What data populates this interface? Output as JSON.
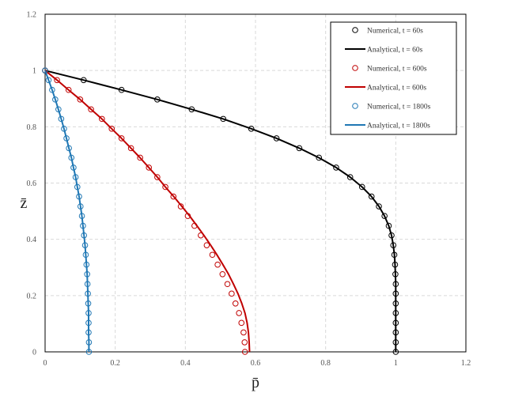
{
  "chart_data": {
    "type": "scatter",
    "title": "",
    "xlabel": "p̄",
    "ylabel": "z̄",
    "xlim": [
      0,
      1.2
    ],
    "ylim": [
      0,
      1.2
    ],
    "xticks": [
      "0",
      "0.2",
      "0.4",
      "0.6",
      "0.8",
      "1",
      "1.2"
    ],
    "yticks": [
      "0",
      "0.2",
      "0.4",
      "0.6",
      "0.8",
      "1",
      "1.2"
    ],
    "grid": true,
    "legend_position": "top-right",
    "legend": [
      "Numerical, t = 60s",
      "Analytical, t = 60s",
      "Numerical, t = 600s",
      "Analytical, t = 600s",
      "Numerical, t = 1800s",
      "Analytical, t = 1800s"
    ],
    "series": [
      {
        "name": "Numerical, t = 60s",
        "kind": "markers",
        "color": "#000000",
        "points": [
          [
            0,
            1.0
          ],
          [
            0.11,
            0.966
          ],
          [
            0.218,
            0.931
          ],
          [
            0.32,
            0.897
          ],
          [
            0.418,
            0.862
          ],
          [
            0.508,
            0.828
          ],
          [
            0.588,
            0.793
          ],
          [
            0.66,
            0.759
          ],
          [
            0.725,
            0.724
          ],
          [
            0.781,
            0.69
          ],
          [
            0.83,
            0.655
          ],
          [
            0.87,
            0.621
          ],
          [
            0.904,
            0.586
          ],
          [
            0.931,
            0.552
          ],
          [
            0.952,
            0.517
          ],
          [
            0.968,
            0.483
          ],
          [
            0.98,
            0.448
          ],
          [
            0.988,
            0.414
          ],
          [
            0.993,
            0.379
          ],
          [
            0.996,
            0.345
          ],
          [
            0.998,
            0.31
          ],
          [
            0.999,
            0.276
          ],
          [
            1.0,
            0.241
          ],
          [
            1.0,
            0.207
          ],
          [
            1.0,
            0.172
          ],
          [
            1.0,
            0.138
          ],
          [
            1.0,
            0.103
          ],
          [
            1.0,
            0.069
          ],
          [
            1.0,
            0.034
          ],
          [
            1.0,
            0.0
          ]
        ]
      },
      {
        "name": "Analytical, t = 60s",
        "kind": "line",
        "color": "#000000",
        "points": [
          [
            0,
            1.0
          ],
          [
            0.11,
            0.966
          ],
          [
            0.218,
            0.931
          ],
          [
            0.32,
            0.897
          ],
          [
            0.418,
            0.862
          ],
          [
            0.508,
            0.828
          ],
          [
            0.588,
            0.793
          ],
          [
            0.66,
            0.759
          ],
          [
            0.725,
            0.724
          ],
          [
            0.781,
            0.69
          ],
          [
            0.83,
            0.655
          ],
          [
            0.87,
            0.621
          ],
          [
            0.904,
            0.586
          ],
          [
            0.931,
            0.552
          ],
          [
            0.952,
            0.517
          ],
          [
            0.968,
            0.483
          ],
          [
            0.98,
            0.448
          ],
          [
            0.988,
            0.414
          ],
          [
            0.993,
            0.379
          ],
          [
            0.996,
            0.345
          ],
          [
            0.998,
            0.31
          ],
          [
            0.999,
            0.276
          ],
          [
            1.0,
            0.241
          ],
          [
            1.0,
            0.207
          ],
          [
            1.0,
            0.172
          ],
          [
            1.0,
            0.138
          ],
          [
            1.0,
            0.103
          ],
          [
            1.0,
            0.069
          ],
          [
            1.0,
            0.034
          ],
          [
            1.0,
            0.0
          ]
        ]
      },
      {
        "name": "Numerical, t = 600s",
        "kind": "markers",
        "color": "#c00000",
        "points": [
          [
            0,
            1.0
          ],
          [
            0.034,
            0.966
          ],
          [
            0.067,
            0.931
          ],
          [
            0.1,
            0.897
          ],
          [
            0.131,
            0.862
          ],
          [
            0.162,
            0.828
          ],
          [
            0.19,
            0.793
          ],
          [
            0.218,
            0.759
          ],
          [
            0.245,
            0.724
          ],
          [
            0.271,
            0.69
          ],
          [
            0.296,
            0.655
          ],
          [
            0.32,
            0.621
          ],
          [
            0.343,
            0.586
          ],
          [
            0.366,
            0.552
          ],
          [
            0.387,
            0.517
          ],
          [
            0.407,
            0.483
          ],
          [
            0.426,
            0.448
          ],
          [
            0.444,
            0.414
          ],
          [
            0.461,
            0.379
          ],
          [
            0.477,
            0.345
          ],
          [
            0.492,
            0.31
          ],
          [
            0.506,
            0.276
          ],
          [
            0.52,
            0.241
          ],
          [
            0.532,
            0.207
          ],
          [
            0.543,
            0.172
          ],
          [
            0.553,
            0.138
          ],
          [
            0.56,
            0.103
          ],
          [
            0.566,
            0.069
          ],
          [
            0.569,
            0.034
          ],
          [
            0.57,
            0.0
          ]
        ]
      },
      {
        "name": "Analytical, t = 600s",
        "kind": "line",
        "color": "#c00000",
        "points": [
          [
            0,
            1.0
          ],
          [
            0.034,
            0.966
          ],
          [
            0.067,
            0.931
          ],
          [
            0.1,
            0.897
          ],
          [
            0.131,
            0.862
          ],
          [
            0.162,
            0.828
          ],
          [
            0.19,
            0.793
          ],
          [
            0.218,
            0.759
          ],
          [
            0.245,
            0.724
          ],
          [
            0.271,
            0.69
          ],
          [
            0.296,
            0.655
          ],
          [
            0.32,
            0.621
          ],
          [
            0.343,
            0.586
          ],
          [
            0.367,
            0.552
          ],
          [
            0.39,
            0.517
          ],
          [
            0.412,
            0.483
          ],
          [
            0.433,
            0.448
          ],
          [
            0.453,
            0.414
          ],
          [
            0.472,
            0.379
          ],
          [
            0.49,
            0.345
          ],
          [
            0.507,
            0.31
          ],
          [
            0.523,
            0.276
          ],
          [
            0.537,
            0.241
          ],
          [
            0.55,
            0.207
          ],
          [
            0.561,
            0.172
          ],
          [
            0.57,
            0.138
          ],
          [
            0.576,
            0.103
          ],
          [
            0.58,
            0.069
          ],
          [
            0.582,
            0.034
          ],
          [
            0.583,
            0.0
          ]
        ]
      },
      {
        "name": "Numerical, t = 1800s",
        "kind": "markers",
        "color": "#1f77b4",
        "points": [
          [
            0,
            1.0
          ],
          [
            0.01,
            0.966
          ],
          [
            0.02,
            0.931
          ],
          [
            0.029,
            0.897
          ],
          [
            0.038,
            0.862
          ],
          [
            0.046,
            0.828
          ],
          [
            0.054,
            0.793
          ],
          [
            0.061,
            0.759
          ],
          [
            0.068,
            0.724
          ],
          [
            0.075,
            0.69
          ],
          [
            0.081,
            0.655
          ],
          [
            0.087,
            0.621
          ],
          [
            0.092,
            0.586
          ],
          [
            0.097,
            0.552
          ],
          [
            0.101,
            0.517
          ],
          [
            0.105,
            0.483
          ],
          [
            0.108,
            0.448
          ],
          [
            0.111,
            0.414
          ],
          [
            0.114,
            0.379
          ],
          [
            0.116,
            0.345
          ],
          [
            0.118,
            0.31
          ],
          [
            0.12,
            0.276
          ],
          [
            0.121,
            0.241
          ],
          [
            0.122,
            0.207
          ],
          [
            0.123,
            0.172
          ],
          [
            0.124,
            0.138
          ],
          [
            0.124,
            0.103
          ],
          [
            0.124,
            0.069
          ],
          [
            0.125,
            0.034
          ],
          [
            0.125,
            0.0
          ]
        ]
      },
      {
        "name": "Analytical, t = 1800s",
        "kind": "line",
        "color": "#1f77b4",
        "points": [
          [
            0,
            1.0
          ],
          [
            0.01,
            0.966
          ],
          [
            0.02,
            0.931
          ],
          [
            0.029,
            0.897
          ],
          [
            0.038,
            0.862
          ],
          [
            0.046,
            0.828
          ],
          [
            0.054,
            0.793
          ],
          [
            0.061,
            0.759
          ],
          [
            0.068,
            0.724
          ],
          [
            0.075,
            0.69
          ],
          [
            0.081,
            0.655
          ],
          [
            0.087,
            0.621
          ],
          [
            0.092,
            0.586
          ],
          [
            0.097,
            0.552
          ],
          [
            0.101,
            0.517
          ],
          [
            0.105,
            0.483
          ],
          [
            0.108,
            0.448
          ],
          [
            0.111,
            0.414
          ],
          [
            0.114,
            0.379
          ],
          [
            0.116,
            0.345
          ],
          [
            0.118,
            0.31
          ],
          [
            0.12,
            0.276
          ],
          [
            0.121,
            0.241
          ],
          [
            0.122,
            0.207
          ],
          [
            0.123,
            0.172
          ],
          [
            0.124,
            0.138
          ],
          [
            0.124,
            0.103
          ],
          [
            0.124,
            0.069
          ],
          [
            0.125,
            0.034
          ],
          [
            0.125,
            0.0
          ]
        ]
      }
    ]
  }
}
